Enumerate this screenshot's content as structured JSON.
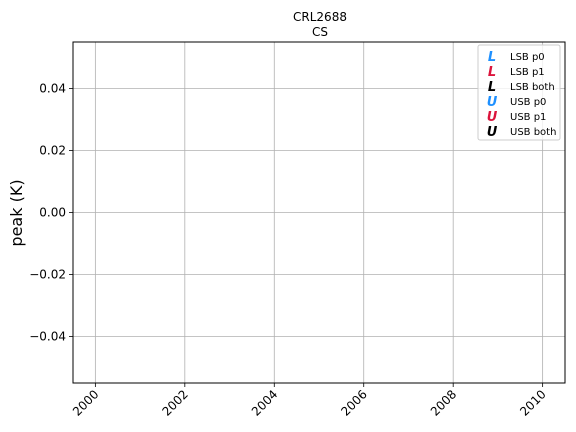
{
  "chart_data": {
    "type": "scatter",
    "title": "CRL2688",
    "subtitle": "CS",
    "xlabel": "",
    "ylabel": "peak (K)",
    "xlim": [
      1999.5,
      2010.5
    ],
    "ylim": [
      -0.055,
      0.055
    ],
    "x_ticks": [
      2000,
      2002,
      2004,
      2006,
      2008,
      2010
    ],
    "x_tick_labels": [
      "2000",
      "2002",
      "2004",
      "2006",
      "2008",
      "2010"
    ],
    "y_ticks": [
      0.04,
      0.02,
      0.0,
      -0.02,
      -0.04
    ],
    "y_tick_labels": [
      "0.04",
      "0.02",
      "0.00",
      "−0.02",
      "−0.04"
    ],
    "grid": true,
    "legend_position": "top-right",
    "legend": [
      {
        "marker": "L",
        "label": "LSB p0",
        "color": "#1e90ff"
      },
      {
        "marker": "L",
        "label": "LSB p1",
        "color": "#dc143c"
      },
      {
        "marker": "L",
        "label": "LSB both",
        "color": "#000000"
      },
      {
        "marker": "U",
        "label": "USB p0",
        "color": "#1e90ff"
      },
      {
        "marker": "U",
        "label": "USB p1",
        "color": "#dc143c"
      },
      {
        "marker": "U",
        "label": "USB both",
        "color": "#000000"
      }
    ],
    "series": [
      {
        "name": "LSB p0",
        "x": [],
        "y": []
      },
      {
        "name": "LSB p1",
        "x": [],
        "y": []
      },
      {
        "name": "LSB both",
        "x": [],
        "y": []
      },
      {
        "name": "USB p0",
        "x": [],
        "y": []
      },
      {
        "name": "USB p1",
        "x": [],
        "y": []
      },
      {
        "name": "USB both",
        "x": [],
        "y": []
      }
    ]
  }
}
